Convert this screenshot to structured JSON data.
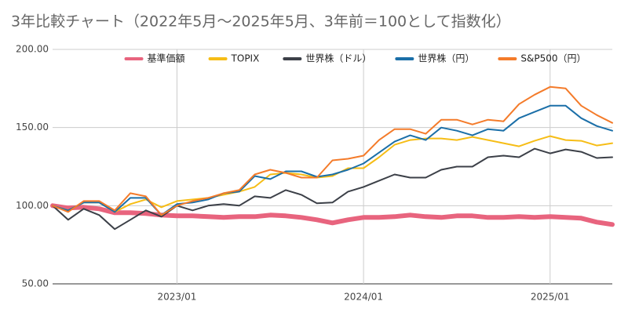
{
  "chart_data": {
    "type": "line",
    "title": "3年比較チャート（2022年5月〜2025年5月、3年前＝100として指数化）",
    "x": [
      "2022/05",
      "2022/06",
      "2022/07",
      "2022/08",
      "2022/09",
      "2022/10",
      "2022/11",
      "2022/12",
      "2023/01",
      "2023/02",
      "2023/03",
      "2023/04",
      "2023/05",
      "2023/06",
      "2023/07",
      "2023/08",
      "2023/09",
      "2023/10",
      "2023/11",
      "2023/12",
      "2024/01",
      "2024/02",
      "2024/03",
      "2024/04",
      "2024/05",
      "2024/06",
      "2024/07",
      "2024/08",
      "2024/09",
      "2024/10",
      "2024/11",
      "2024/12",
      "2025/01",
      "2025/02",
      "2025/03",
      "2025/04",
      "2025/05"
    ],
    "xticks": [
      "2023/01",
      "2024/01",
      "2025/01"
    ],
    "ylim": [
      50,
      200
    ],
    "yticks": [
      {
        "value": 50,
        "label": "50.00"
      },
      {
        "value": 100,
        "label": "100.00"
      },
      {
        "value": 150,
        "label": "150.00"
      },
      {
        "value": 200,
        "label": "200.00"
      }
    ],
    "grid": true,
    "legend": "top",
    "series": [
      {
        "name": "基準価額",
        "color": "#e8647e",
        "values": [
          100,
          98.5,
          99,
          98,
          95.5,
          95.5,
          95,
          94,
          93.5,
          93.5,
          93,
          92.5,
          93,
          93,
          94,
          93.5,
          92.5,
          91,
          89,
          91,
          92.5,
          92.5,
          93,
          94,
          93,
          92.5,
          93.5,
          93.5,
          92.5,
          92.5,
          93,
          92.5,
          93,
          92.5,
          92,
          89.5,
          88
        ]
      },
      {
        "name": "TOPIX",
        "color": "#f6bd16",
        "values": [
          100,
          97,
          102,
          102,
          96,
          101,
          104,
          99,
          103,
          104,
          105,
          107,
          109,
          112,
          120,
          121,
          120,
          118,
          119,
          124,
          124,
          131,
          139,
          142,
          143,
          143,
          142,
          144,
          142,
          140,
          138,
          141.5,
          144.5,
          142,
          141.5,
          138.5,
          140
        ]
      },
      {
        "name": "世界株（ドル）",
        "color": "#3c4048",
        "values": [
          100,
          91,
          98,
          94,
          85,
          91,
          97,
          93,
          100,
          97,
          100,
          101,
          100,
          106,
          105,
          110,
          107,
          101.5,
          102,
          109,
          112,
          116,
          120,
          118,
          118,
          123,
          125,
          125,
          131,
          132,
          131,
          136.5,
          133.5,
          136,
          134.5,
          130.5,
          131
        ]
      },
      {
        "name": "世界株（円）",
        "color": "#1b6fa8",
        "values": [
          100,
          97,
          102,
          102,
          96,
          105,
          105,
          94,
          101,
          102,
          104,
          108,
          109,
          119,
          117,
          122,
          122,
          118.5,
          120,
          123,
          127,
          134,
          141,
          145,
          142,
          150,
          148,
          145,
          149,
          148,
          156,
          160,
          164,
          164,
          156,
          151,
          148
        ]
      },
      {
        "name": "S&P500（円）",
        "color": "#f47b2a",
        "values": [
          100,
          96,
          103,
          103,
          97,
          108,
          106,
          94,
          100,
          103,
          105,
          108,
          110,
          120,
          123,
          121,
          118,
          118,
          129,
          130,
          132,
          142,
          149,
          149,
          146,
          155,
          155,
          152,
          155,
          154,
          165,
          171,
          176,
          175,
          164,
          158,
          153
        ]
      }
    ]
  }
}
